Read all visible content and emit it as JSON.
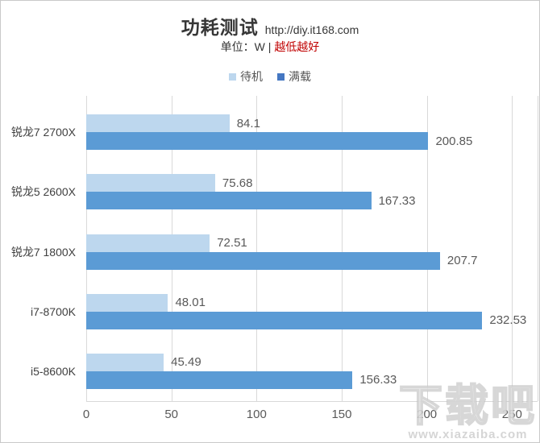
{
  "header": {
    "title": "功耗测试",
    "source_url": "http://diy.it168.com",
    "unit_label": "单位：W | ",
    "unit_highlight": "越低越好"
  },
  "legend": {
    "items": [
      {
        "id": "standby",
        "label": "待机",
        "marker_color": "#bdd7ee"
      },
      {
        "id": "full-load",
        "label": "满载",
        "marker_color": "#4577c2"
      }
    ]
  },
  "chart_data": {
    "type": "bar",
    "orientation": "horizontal",
    "title": "功耗测试 http://diy.it168.com",
    "subtitle": "单位：W | 越低越好",
    "lower_is_better": true,
    "categories": [
      "锐龙7 2700X",
      "锐龙5 2600X",
      "锐龙7 1800X",
      "i7-8700K",
      "i5-8600K"
    ],
    "series": [
      {
        "id": "standby",
        "name": "待机",
        "color": "#bdd7ee",
        "values": [
          84.1,
          75.68,
          72.51,
          48.01,
          45.49
        ],
        "labels": [
          "84.1",
          "75.68",
          "72.51",
          "48.01",
          "45.49"
        ]
      },
      {
        "id": "full-load",
        "name": "满载",
        "color": "#5b9bd5",
        "values": [
          200.85,
          167.33,
          207.7,
          232.53,
          156.33
        ],
        "labels": [
          "200.85",
          "167.33",
          "207.7",
          "232.53",
          "156.33"
        ]
      }
    ],
    "xlabel": "",
    "ylabel": "",
    "x_ticks": [
      "0",
      "50",
      "100",
      "150",
      "200",
      "250"
    ],
    "x_tick_values": [
      0,
      50,
      100,
      150,
      200,
      250
    ],
    "xlim": [
      0,
      265
    ],
    "grid": true,
    "legend_position": "top"
  },
  "watermark": {
    "text": "下载吧",
    "subtext": "www.xiazaiba.com"
  },
  "colors": {
    "gridline": "#d9d9d9",
    "axis_text": "#595959",
    "category_text": "#404040",
    "highlight_red": "#c00000",
    "frame_border": "#c9c9c9"
  }
}
